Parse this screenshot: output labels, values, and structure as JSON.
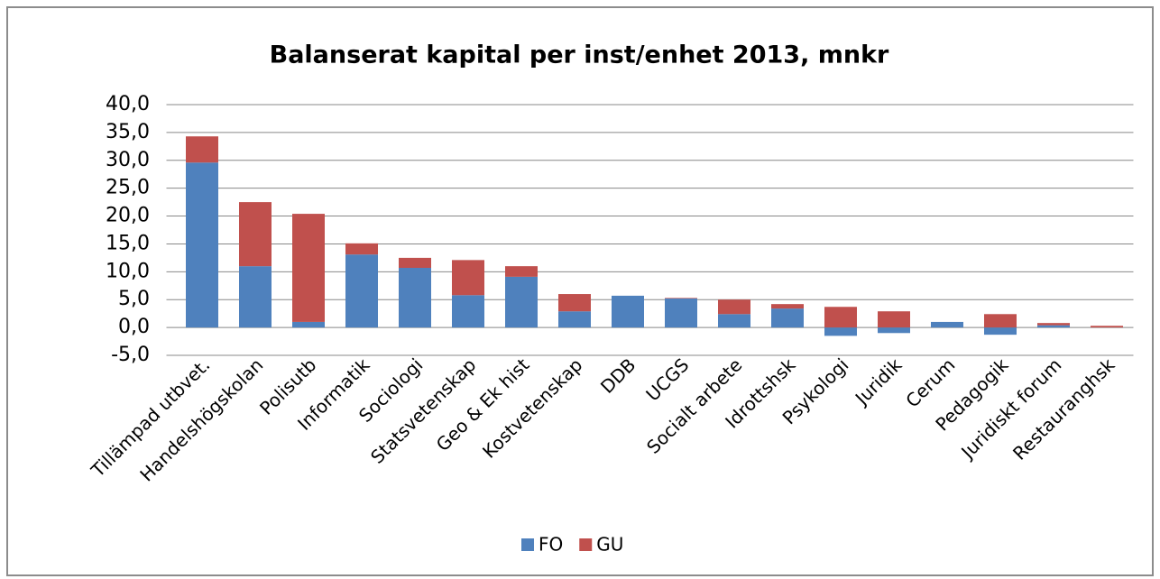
{
  "chart_data": {
    "type": "stacked_bar",
    "title": "Balanserat kapital per inst/enhet 2013, mnkr",
    "categories": [
      "Tillämpad utbvet.",
      "Handelshögskolan",
      "Polisutb",
      "Informatik",
      "Sociologi",
      "Statsvetenskap",
      "Geo & Ek hist",
      "Kostvetenskap",
      "DDB",
      "UCGS",
      "Socialt arbete",
      "Idrottshsk",
      "Psykologi",
      "Juridik",
      "Cerum",
      "Pedagogik",
      "Juridiskt forum",
      "Restauranghsk"
    ],
    "series": [
      {
        "name": "FO",
        "color": "#4f81bd",
        "values": [
          29.6,
          11.0,
          1.0,
          13.1,
          10.7,
          5.8,
          9.1,
          2.9,
          5.7,
          5.2,
          2.4,
          3.4,
          -1.5,
          -1.0,
          1.0,
          -1.3,
          0.4,
          0
        ]
      },
      {
        "name": "GU",
        "color": "#c0504d",
        "values": [
          4.7,
          11.5,
          19.4,
          2.0,
          1.8,
          6.3,
          1.9,
          3.1,
          0,
          0.1,
          2.6,
          0.8,
          3.7,
          2.9,
          0,
          2.4,
          0.4,
          0.3
        ]
      }
    ],
    "ylim": [
      -5,
      40
    ],
    "yticks": [
      {
        "value": -5,
        "label": "-5,0"
      },
      {
        "value": 0,
        "label": "0,0"
      },
      {
        "value": 5,
        "label": "5,0"
      },
      {
        "value": 10,
        "label": "10,0"
      },
      {
        "value": 15,
        "label": "15,0"
      },
      {
        "value": 20,
        "label": "20,0"
      },
      {
        "value": 25,
        "label": "25,0"
      },
      {
        "value": 30,
        "label": "30,0"
      },
      {
        "value": 35,
        "label": "35,0"
      },
      {
        "value": 40,
        "label": "40,0"
      }
    ],
    "grid": true,
    "legend": "bottom"
  }
}
